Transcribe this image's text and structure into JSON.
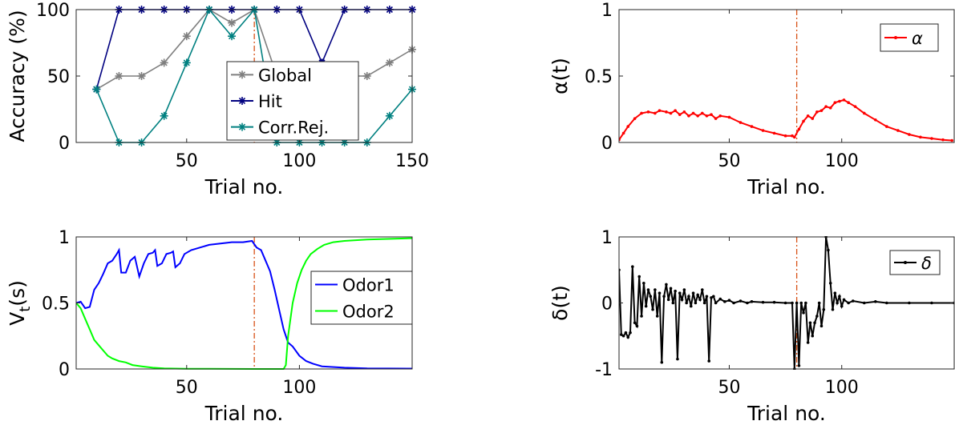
{
  "chart_data": [
    {
      "type": "line",
      "xlabel": "Trial no.",
      "ylabel": "Accuracy (%)",
      "xlim": [
        1,
        150
      ],
      "ylim": [
        0,
        100
      ],
      "xticks": [
        50,
        100,
        150
      ],
      "yticks": [
        0,
        50,
        100
      ],
      "legend": "inside-lower-right",
      "vline_x": 80,
      "x": [
        10,
        20,
        30,
        40,
        50,
        60,
        70,
        80,
        90,
        100,
        110,
        120,
        130,
        140,
        150
      ],
      "series": [
        {
          "name": "Global",
          "color": "#7f7f7f",
          "marker": "asterisk",
          "values": [
            40,
            50,
            50,
            60,
            80,
            100,
            90,
            100,
            50,
            50,
            50,
            50,
            50,
            60,
            70
          ]
        },
        {
          "name": "Hit",
          "color": "#000080",
          "marker": "asterisk",
          "values": [
            40,
            100,
            100,
            100,
            100,
            100,
            100,
            100,
            100,
            100,
            60,
            100,
            100,
            100,
            100
          ]
        },
        {
          "name": "Corr.Rej.",
          "color": "#008080",
          "marker": "asterisk",
          "values": [
            40,
            0,
            0,
            20,
            60,
            100,
            80,
            100,
            0,
            0,
            0,
            0,
            0,
            20,
            40
          ]
        }
      ]
    },
    {
      "type": "line",
      "xlabel": "Trial no.",
      "ylabel": "α(t)",
      "xlim": [
        1,
        150
      ],
      "ylim": [
        0,
        1
      ],
      "xticks": [
        50,
        100
      ],
      "yticks": [
        0,
        0.5,
        1
      ],
      "legend": "top-right",
      "vline_x": 80,
      "series": [
        {
          "name": "α",
          "color": "#ff0000",
          "marker": "dot",
          "points": [
            [
              1,
              0.02
            ],
            [
              3,
              0.07
            ],
            [
              5,
              0.12
            ],
            [
              8,
              0.18
            ],
            [
              11,
              0.22
            ],
            [
              14,
              0.23
            ],
            [
              17,
              0.22
            ],
            [
              19,
              0.24
            ],
            [
              22,
              0.23
            ],
            [
              24,
              0.22
            ],
            [
              26,
              0.24
            ],
            [
              28,
              0.21
            ],
            [
              30,
              0.23
            ],
            [
              32,
              0.2
            ],
            [
              34,
              0.22
            ],
            [
              36,
              0.2
            ],
            [
              38,
              0.22
            ],
            [
              40,
              0.2
            ],
            [
              42,
              0.21
            ],
            [
              44,
              0.18
            ],
            [
              46,
              0.2
            ],
            [
              50,
              0.19
            ],
            [
              55,
              0.15
            ],
            [
              60,
              0.12
            ],
            [
              65,
              0.09
            ],
            [
              70,
              0.07
            ],
            [
              75,
              0.05
            ],
            [
              78,
              0.05
            ],
            [
              79,
              0.04
            ],
            [
              81,
              0.1
            ],
            [
              83,
              0.16
            ],
            [
              85,
              0.2
            ],
            [
              87,
              0.18
            ],
            [
              89,
              0.23
            ],
            [
              91,
              0.24
            ],
            [
              93,
              0.27
            ],
            [
              95,
              0.26
            ],
            [
              97,
              0.3
            ],
            [
              99,
              0.31
            ],
            [
              101,
              0.32
            ],
            [
              103,
              0.3
            ],
            [
              106,
              0.27
            ],
            [
              110,
              0.22
            ],
            [
              115,
              0.17
            ],
            [
              120,
              0.12
            ],
            [
              125,
              0.09
            ],
            [
              130,
              0.06
            ],
            [
              135,
              0.04
            ],
            [
              140,
              0.03
            ],
            [
              145,
              0.02
            ],
            [
              149,
              0.015
            ]
          ]
        }
      ]
    },
    {
      "type": "line",
      "xlabel": "Trial no.",
      "ylabel": "V_t(s)",
      "xlim": [
        1,
        150
      ],
      "ylim": [
        0,
        1
      ],
      "xticks": [
        50,
        100
      ],
      "yticks": [
        0,
        0.5,
        1
      ],
      "legend": "right",
      "vline_x": 80,
      "series": [
        {
          "name": "Odor1",
          "color": "#0000ff",
          "points": [
            [
              1,
              0.5
            ],
            [
              3,
              0.51
            ],
            [
              5,
              0.46
            ],
            [
              7,
              0.47
            ],
            [
              9,
              0.6
            ],
            [
              11,
              0.65
            ],
            [
              13,
              0.72
            ],
            [
              15,
              0.8
            ],
            [
              17,
              0.82
            ],
            [
              19,
              0.87
            ],
            [
              20,
              0.9
            ],
            [
              21,
              0.73
            ],
            [
              23,
              0.73
            ],
            [
              25,
              0.82
            ],
            [
              27,
              0.85
            ],
            [
              29,
              0.7
            ],
            [
              31,
              0.8
            ],
            [
              33,
              0.87
            ],
            [
              35,
              0.88
            ],
            [
              36,
              0.9
            ],
            [
              37,
              0.78
            ],
            [
              39,
              0.8
            ],
            [
              41,
              0.87
            ],
            [
              43,
              0.88
            ],
            [
              44,
              0.89
            ],
            [
              45,
              0.77
            ],
            [
              47,
              0.8
            ],
            [
              49,
              0.87
            ],
            [
              52,
              0.9
            ],
            [
              56,
              0.92
            ],
            [
              60,
              0.94
            ],
            [
              65,
              0.95
            ],
            [
              70,
              0.96
            ],
            [
              75,
              0.96
            ],
            [
              79,
              0.97
            ],
            [
              81,
              0.92
            ],
            [
              83,
              0.9
            ],
            [
              85,
              0.82
            ],
            [
              87,
              0.74
            ],
            [
              89,
              0.6
            ],
            [
              91,
              0.45
            ],
            [
              93,
              0.3
            ],
            [
              95,
              0.2
            ],
            [
              97,
              0.17
            ],
            [
              100,
              0.1
            ],
            [
              103,
              0.06
            ],
            [
              106,
              0.04
            ],
            [
              110,
              0.02
            ],
            [
              120,
              0.01
            ],
            [
              130,
              0.005
            ],
            [
              150,
              0.003
            ]
          ]
        },
        {
          "name": "Odor2",
          "color": "#00ff00",
          "points": [
            [
              1,
              0.5
            ],
            [
              3,
              0.46
            ],
            [
              5,
              0.38
            ],
            [
              7,
              0.3
            ],
            [
              9,
              0.22
            ],
            [
              11,
              0.18
            ],
            [
              13,
              0.14
            ],
            [
              15,
              0.1
            ],
            [
              17,
              0.08
            ],
            [
              20,
              0.06
            ],
            [
              23,
              0.05
            ],
            [
              26,
              0.03
            ],
            [
              30,
              0.02
            ],
            [
              35,
              0.01
            ],
            [
              40,
              0.005
            ],
            [
              50,
              0.002
            ],
            [
              60,
              0.001
            ],
            [
              80,
              0
            ],
            [
              93,
              0
            ],
            [
              94,
              0.03
            ],
            [
              95,
              0.25
            ],
            [
              97,
              0.5
            ],
            [
              99,
              0.65
            ],
            [
              101,
              0.75
            ],
            [
              103,
              0.82
            ],
            [
              105,
              0.87
            ],
            [
              108,
              0.91
            ],
            [
              111,
              0.94
            ],
            [
              115,
              0.96
            ],
            [
              120,
              0.97
            ],
            [
              130,
              0.98
            ],
            [
              150,
              0.99
            ]
          ]
        }
      ]
    },
    {
      "type": "line",
      "xlabel": "Trial no.",
      "ylabel": "δ(t)",
      "xlim": [
        1,
        150
      ],
      "ylim": [
        -1,
        1
      ],
      "xticks": [
        50,
        100
      ],
      "yticks": [
        -1,
        0,
        1
      ],
      "legend": "top-right",
      "vline_x": 80,
      "series": [
        {
          "name": "δ",
          "color": "#000000",
          "marker": "dot",
          "points": [
            [
              1,
              0.5
            ],
            [
              2,
              -0.48
            ],
            [
              3,
              -0.5
            ],
            [
              4,
              -0.45
            ],
            [
              5,
              -0.52
            ],
            [
              6,
              -0.45
            ],
            [
              7,
              0.55
            ],
            [
              8,
              -0.3
            ],
            [
              9,
              -0.35
            ],
            [
              10,
              0.4
            ],
            [
              11,
              -0.2
            ],
            [
              12,
              0.3
            ],
            [
              13,
              -0.05
            ],
            [
              14,
              0.2
            ],
            [
              15,
              0.1
            ],
            [
              16,
              -0.1
            ],
            [
              17,
              0.2
            ],
            [
              18,
              -0.2
            ],
            [
              19,
              0.15
            ],
            [
              20,
              -0.9
            ],
            [
              21,
              0.1
            ],
            [
              22,
              0.28
            ],
            [
              23,
              0.05
            ],
            [
              24,
              0.22
            ],
            [
              25,
              0.0
            ],
            [
              26,
              0.18
            ],
            [
              27,
              -0.85
            ],
            [
              28,
              0.15
            ],
            [
              29,
              0.05
            ],
            [
              30,
              0.2
            ],
            [
              31,
              0.0
            ],
            [
              32,
              0.1
            ],
            [
              33,
              -0.05
            ],
            [
              34,
              0.15
            ],
            [
              35,
              0.0
            ],
            [
              36,
              0.12
            ],
            [
              37,
              0.05
            ],
            [
              38,
              0.2
            ],
            [
              39,
              0.0
            ],
            [
              40,
              0.1
            ],
            [
              41,
              -0.88
            ],
            [
              42,
              0.08
            ],
            [
              43,
              0.1
            ],
            [
              44,
              0.0
            ],
            [
              46,
              0.06
            ],
            [
              48,
              0.02
            ],
            [
              50,
              0.04
            ],
            [
              52,
              0.0
            ],
            [
              55,
              0.03
            ],
            [
              58,
              0.0
            ],
            [
              60,
              0.02
            ],
            [
              65,
              0.01
            ],
            [
              70,
              0.01
            ],
            [
              75,
              0.0
            ],
            [
              78,
              0.0
            ],
            [
              79,
              -1.0
            ],
            [
              80,
              0.0
            ],
            [
              81,
              -0.95
            ],
            [
              82,
              0.0
            ],
            [
              83,
              -0.15
            ],
            [
              84,
              0.0
            ],
            [
              85,
              -0.6
            ],
            [
              86,
              -0.3
            ],
            [
              87,
              -0.5
            ],
            [
              88,
              -0.3
            ],
            [
              89,
              -0.2
            ],
            [
              90,
              0.0
            ],
            [
              91,
              -0.35
            ],
            [
              92,
              -0.1
            ],
            [
              93,
              1.0
            ],
            [
              94,
              0.8
            ],
            [
              95,
              0.3
            ],
            [
              96,
              -0.1
            ],
            [
              97,
              0.15
            ],
            [
              98,
              0.0
            ],
            [
              99,
              0.1
            ],
            [
              100,
              -0.05
            ],
            [
              101,
              0.05
            ],
            [
              103,
              0.0
            ],
            [
              105,
              0.03
            ],
            [
              110,
              0.0
            ],
            [
              115,
              0.02
            ],
            [
              120,
              0.0
            ],
            [
              130,
              0.0
            ],
            [
              140,
              0.0
            ],
            [
              150,
              0.0
            ]
          ]
        }
      ]
    }
  ]
}
